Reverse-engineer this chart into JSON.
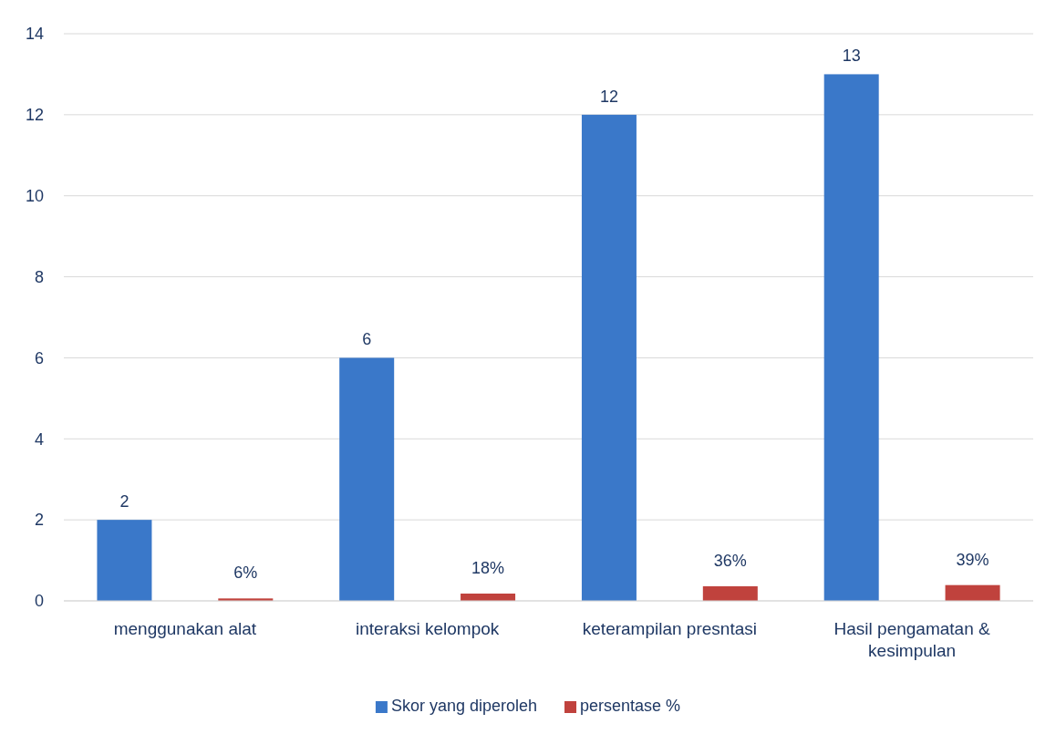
{
  "chart_data": {
    "type": "bar",
    "categories": [
      "menggunakan alat",
      "interaksi kelompok",
      "keterampilan presntasi",
      "Hasil pengamatan & kesimpulan"
    ],
    "series": [
      {
        "name": "Skor yang diperoleh",
        "color": "#3a78c9",
        "values": [
          2,
          6,
          12,
          13
        ],
        "value_labels": [
          "2",
          "6",
          "12",
          "13"
        ]
      },
      {
        "name": "persentase %",
        "color": "#c0423d",
        "values": [
          0.06,
          0.18,
          0.36,
          0.39
        ],
        "value_labels": [
          "6%",
          "18%",
          "36%",
          "39%"
        ]
      }
    ],
    "ylim": [
      0,
      14
    ],
    "yticks": [
      0,
      2,
      4,
      6,
      8,
      10,
      12,
      14
    ],
    "grid": "y",
    "legend": "bottom"
  }
}
